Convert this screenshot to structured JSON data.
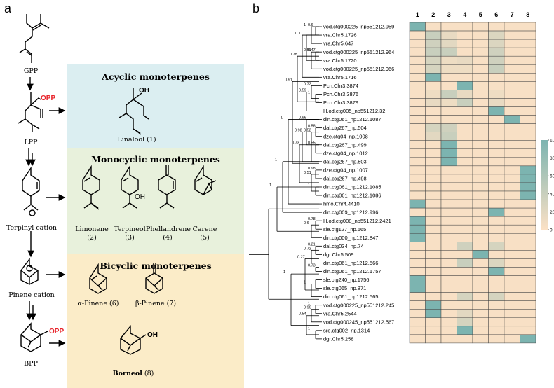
{
  "panels": {
    "a": "a",
    "b": "b"
  },
  "pathway": {
    "intermediates": {
      "gpp": "GPP",
      "lpp": "LPP",
      "terpinyl": "Terpinyl cation",
      "pinene": "Pinene cation",
      "bpp": "BPP"
    },
    "opp_label": "OPP",
    "oh_label": "OH",
    "opp_color": "#e8232a",
    "boxes": {
      "acyclic": {
        "title": "Acyclic monoterpenes",
        "color": "#dbeef1",
        "products": [
          {
            "name": "Linalool (1)"
          }
        ]
      },
      "monocyclic": {
        "title": "Monocyclic monoterpenes",
        "color": "#e8f1dc",
        "products": [
          {
            "name": "Limonene",
            "num": "(2)"
          },
          {
            "name": "Terpineol",
            "num": "(3)"
          },
          {
            "name": "Phellandrene",
            "num": "(4)"
          },
          {
            "name": "Carene",
            "num": "(5)"
          }
        ]
      },
      "bicyclic": {
        "title": "Bicyclic monoterpenes",
        "color": "#fbecc8",
        "products": [
          {
            "name": "α-Pinene (6)"
          },
          {
            "name": "β-Pinene (7)"
          },
          {
            "name": "Borneol",
            "num": "(8)"
          }
        ]
      }
    }
  },
  "heatmap": {
    "columns": [
      "1",
      "2",
      "3",
      "4",
      "5",
      "6",
      "7",
      "8"
    ],
    "rows": [
      "vod.ctg000225_np551212.959",
      "vra.Chr5.1726",
      "vra.Chr5.647",
      "vod.ctg000225_np551212.964",
      "vra.Chr5.1720",
      "vod.ctg000225_np551212.966",
      "vra.Chr5.1716",
      "Pch.Chr3.3874",
      "Pch.Chr3.3876",
      "Pch.Chr3.3879",
      "H.od.ctg005_np551212.32",
      "din.ctg061_np1212.1087",
      "dal.ctg267_np.504",
      "dze.ctg04_np.1008",
      "dal.ctg267_np.499",
      "dze.ctg04_np.1012",
      "dal.ctg267_np.503",
      "dze.ctg04_np.1007",
      "dal.ctg267_np.498",
      "din.ctg061_np1212.1085",
      "din.ctg061_np1212.1086",
      "hmo.Chr4.4410",
      "din.ctg009_np1212.996",
      "H.od.ctg008_np551212.2421",
      "sle.ctg127_np.665",
      "din.ctg000_np1212.847",
      "dal.ctg034_np.74",
      "dgr.Chr5.509",
      "din.ctg061_np1212.566",
      "din.ctg061_np1212.1757",
      "sle.ctg240_np.1756",
      "sle.ctg065_np.871",
      "din.ctg061_np1212.565",
      "vod.ctg000225_np551212.245",
      "vra.Chr5.2544",
      "vod.ctg000245_np551212.567",
      "sro.ctg002_np.1314",
      "dgr.Chr5.258"
    ],
    "values": [
      [
        100,
        2,
        2,
        2,
        2,
        2,
        2,
        2
      ],
      [
        2,
        40,
        15,
        2,
        2,
        25,
        2,
        2
      ],
      [
        2,
        35,
        20,
        2,
        2,
        25,
        2,
        2
      ],
      [
        2,
        40,
        40,
        2,
        2,
        35,
        2,
        2
      ],
      [
        2,
        30,
        10,
        15,
        2,
        35,
        2,
        2
      ],
      [
        2,
        30,
        10,
        10,
        2,
        40,
        2,
        2
      ],
      [
        2,
        100,
        2,
        2,
        2,
        2,
        2,
        2
      ],
      [
        2,
        2,
        2,
        100,
        2,
        2,
        2,
        2
      ],
      [
        2,
        10,
        40,
        15,
        2,
        10,
        2,
        2
      ],
      [
        2,
        15,
        10,
        40,
        2,
        15,
        2,
        2
      ],
      [
        2,
        2,
        2,
        2,
        2,
        100,
        2,
        2
      ],
      [
        2,
        2,
        2,
        2,
        2,
        2,
        100,
        2
      ],
      [
        2,
        30,
        35,
        2,
        2,
        2,
        2,
        2
      ],
      [
        2,
        20,
        40,
        2,
        2,
        2,
        2,
        2
      ],
      [
        2,
        2,
        100,
        2,
        2,
        2,
        2,
        2
      ],
      [
        2,
        2,
        100,
        2,
        2,
        2,
        2,
        2
      ],
      [
        2,
        2,
        100,
        2,
        2,
        2,
        2,
        2
      ],
      [
        2,
        2,
        2,
        2,
        2,
        2,
        2,
        100
      ],
      [
        2,
        2,
        2,
        2,
        2,
        2,
        2,
        100
      ],
      [
        2,
        2,
        2,
        2,
        2,
        2,
        2,
        100
      ],
      [
        2,
        2,
        2,
        2,
        2,
        2,
        2,
        100
      ],
      [
        100,
        2,
        2,
        2,
        2,
        2,
        2,
        2
      ],
      [
        2,
        2,
        2,
        2,
        2,
        100,
        2,
        2
      ],
      [
        100,
        2,
        2,
        2,
        2,
        2,
        2,
        2
      ],
      [
        100,
        2,
        2,
        2,
        2,
        2,
        2,
        2
      ],
      [
        100,
        2,
        2,
        2,
        2,
        2,
        2,
        2
      ],
      [
        2,
        2,
        2,
        35,
        2,
        30,
        2,
        2
      ],
      [
        2,
        2,
        2,
        2,
        100,
        2,
        2,
        2
      ],
      [
        2,
        2,
        2,
        40,
        2,
        25,
        2,
        2
      ],
      [
        2,
        2,
        2,
        2,
        2,
        100,
        2,
        2
      ],
      [
        100,
        2,
        2,
        2,
        2,
        2,
        2,
        2
      ],
      [
        100,
        2,
        2,
        2,
        2,
        2,
        2,
        2
      ],
      [
        2,
        2,
        2,
        30,
        2,
        30,
        2,
        2
      ],
      [
        2,
        100,
        2,
        2,
        2,
        2,
        2,
        2
      ],
      [
        2,
        100,
        2,
        20,
        2,
        2,
        2,
        2
      ],
      [
        2,
        2,
        2,
        30,
        2,
        2,
        2,
        2
      ],
      [
        2,
        2,
        2,
        100,
        2,
        2,
        2,
        2
      ],
      [
        2,
        2,
        2,
        2,
        2,
        2,
        2,
        100
      ]
    ],
    "color_low": "#fbe1c5",
    "color_high": "#7cb4b0",
    "colorbar": {
      "ticks": [
        "100",
        "80",
        "60",
        "40",
        "20",
        "0"
      ],
      "range": [
        0,
        100
      ]
    },
    "bootstrap": [
      "0.6",
      "1",
      "0.47",
      "0.51",
      "1",
      "1",
      "1",
      "0.72",
      "0.59",
      "0.78",
      "0.58",
      "0.55",
      "0.52",
      "0.96",
      "0.98",
      "0.98",
      "1",
      "0.51",
      "0.73",
      "0.91",
      "1",
      "1",
      "0.78",
      "0.6",
      "1",
      "0.21",
      "0.72",
      "0.73",
      "1",
      "1",
      "0.27",
      "1",
      "0.96",
      "1",
      "0.54",
      "1"
    ]
  }
}
